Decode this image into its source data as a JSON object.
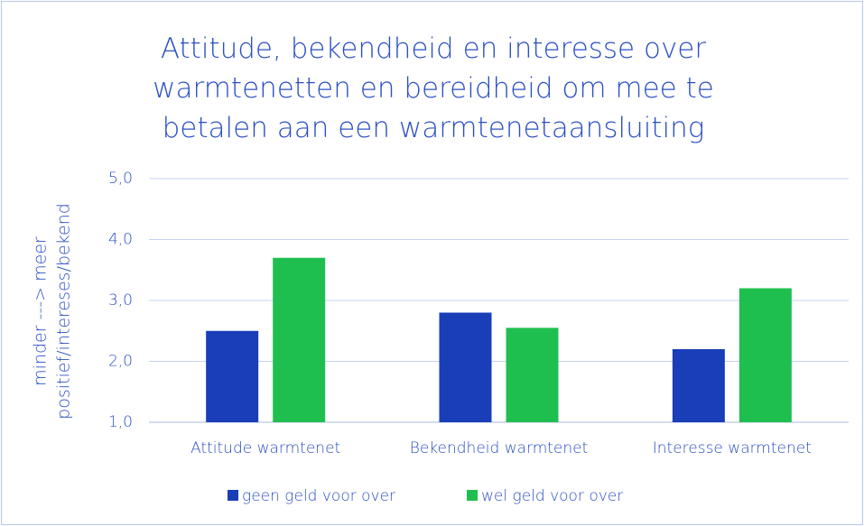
{
  "chart_data": {
    "type": "bar",
    "title": "Attitude, bekendheid en interesse over warmtenetten en bereidheid om mee te betalen aan een warmtenetaansluiting",
    "y_label": [
      "minder ---> meer",
      "positief/intereses/bekend"
    ],
    "categories": [
      "Attitude warmtenet",
      "Bekendheid warmtenet",
      "Interesse warmtenet"
    ],
    "series": [
      {
        "name": "geen geld voor over",
        "color": "#1a3eb8",
        "values": [
          2.5,
          2.8,
          2.2
        ]
      },
      {
        "name": "wel geld voor over",
        "color": "#1fbf4f",
        "values": [
          3.7,
          2.55,
          3.2
        ]
      }
    ],
    "ylim": [
      1,
      5
    ],
    "yticks": [
      {
        "value": 1,
        "label": "1,0"
      },
      {
        "value": 2,
        "label": "2,0"
      },
      {
        "value": 3,
        "label": "3,0"
      },
      {
        "value": 4,
        "label": "4,0"
      },
      {
        "value": 5,
        "label": "5,0"
      }
    ],
    "grid": true,
    "legend": "bottom"
  }
}
